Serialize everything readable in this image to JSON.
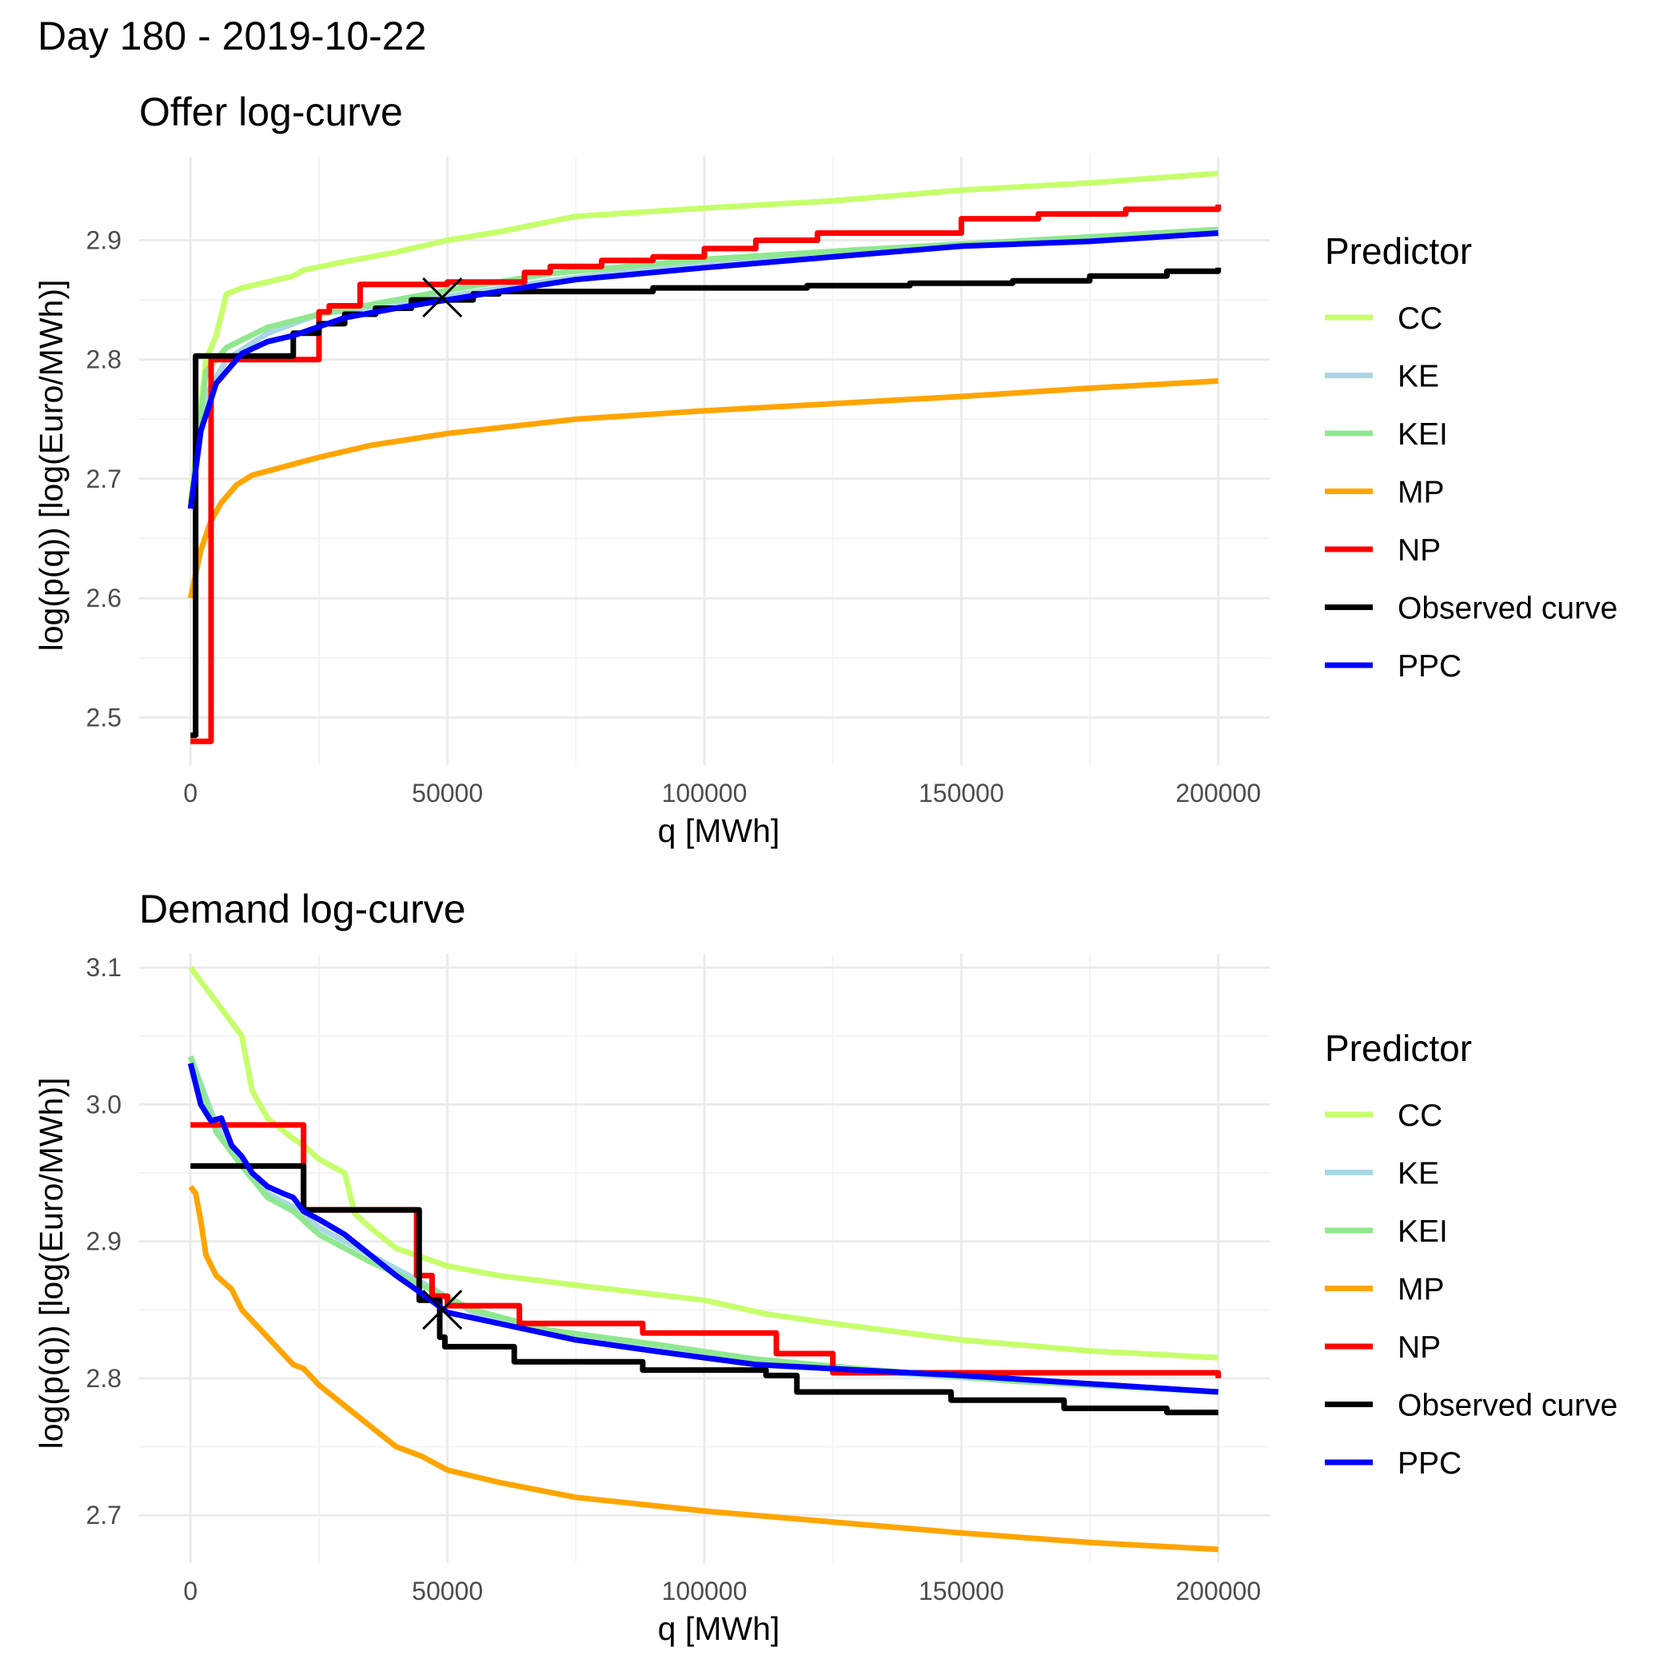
{
  "figure": {
    "title": "Day  180  -  2019-10-22"
  },
  "colors": {
    "CC": "#c6ff6b",
    "KE": "#a8d8e4",
    "KEI": "#8fe88f",
    "MP": "#ffa500",
    "NP": "#ff0000",
    "Observed curve": "#000000",
    "PPC": "#0000ff",
    "grid_major": "#ebebeb",
    "grid_minor": "#f4f4f4"
  },
  "chart_data": [
    {
      "type": "line",
      "title": "Offer log-curve",
      "xlabel": "q [MWh]",
      "ylabel": "log(p(q)) [log(Euro/MWh)]",
      "xlim": [
        -10000,
        210000
      ],
      "ylim": [
        2.46,
        2.97
      ],
      "xticks": [
        0,
        50000,
        100000,
        150000,
        200000
      ],
      "xtick_labels": [
        "0",
        "50000",
        "100000",
        "150000",
        "200000"
      ],
      "yticks": [
        2.5,
        2.6,
        2.7,
        2.8,
        2.9
      ],
      "ytick_labels": [
        "2.5",
        "2.6",
        "2.7",
        "2.8",
        "2.9"
      ],
      "grid": true,
      "legend": {
        "title": "Predictor",
        "position": "right",
        "entries": [
          "CC",
          "KE",
          "KEI",
          "MP",
          "NP",
          "Observed curve",
          "PPC"
        ]
      },
      "marker": {
        "x": 49000,
        "y": 2.852,
        "symbol": "x"
      },
      "series": [
        {
          "name": "CC",
          "step": false,
          "x": [
            0,
            3000,
            5000,
            7000,
            10000,
            15000,
            20000,
            22000,
            30000,
            40000,
            50000,
            60000,
            75000,
            100000,
            125000,
            150000,
            175000,
            200000
          ],
          "y": [
            2.68,
            2.8,
            2.82,
            2.855,
            2.86,
            2.865,
            2.87,
            2.875,
            2.882,
            2.89,
            2.9,
            2.907,
            2.92,
            2.927,
            2.933,
            2.942,
            2.948,
            2.956
          ]
        },
        {
          "name": "KE",
          "step": false,
          "x": [
            0,
            3000,
            7000,
            15000,
            25000,
            40000,
            50000,
            70000,
            100000,
            130000,
            160000,
            200000
          ],
          "y": [
            2.675,
            2.77,
            2.8,
            2.822,
            2.838,
            2.847,
            2.853,
            2.866,
            2.882,
            2.892,
            2.899,
            2.909
          ]
        },
        {
          "name": "KEI",
          "step": false,
          "x": [
            0,
            3000,
            7000,
            15000,
            25000,
            40000,
            50000,
            70000,
            100000,
            130000,
            160000,
            200000
          ],
          "y": [
            2.675,
            2.79,
            2.81,
            2.827,
            2.838,
            2.85,
            2.858,
            2.872,
            2.884,
            2.892,
            2.899,
            2.909
          ]
        },
        {
          "name": "MP",
          "step": false,
          "x": [
            0,
            2000,
            4000,
            6000,
            9000,
            12000,
            18000,
            25000,
            35000,
            50000,
            75000,
            100000,
            125000,
            150000,
            175000,
            200000
          ],
          "y": [
            2.6,
            2.64,
            2.665,
            2.68,
            2.695,
            2.703,
            2.71,
            2.718,
            2.728,
            2.738,
            2.75,
            2.757,
            2.763,
            2.769,
            2.776,
            2.782
          ]
        },
        {
          "name": "NP",
          "step": true,
          "x": [
            0,
            4000,
            25000,
            27000,
            33000,
            50000,
            65000,
            70000,
            80000,
            90000,
            100000,
            110000,
            122000,
            150000,
            165000,
            182000,
            200000
          ],
          "y": [
            2.48,
            2.8,
            2.84,
            2.845,
            2.863,
            2.865,
            2.873,
            2.878,
            2.883,
            2.886,
            2.893,
            2.9,
            2.906,
            2.918,
            2.922,
            2.926,
            2.93
          ]
        },
        {
          "name": "Observed curve",
          "step": true,
          "x": [
            0,
            1000,
            20000,
            25000,
            30000,
            36000,
            43000,
            55000,
            60000,
            70000,
            90000,
            100000,
            120000,
            140000,
            160000,
            175000,
            190000,
            200000
          ],
          "y": [
            2.485,
            2.803,
            2.822,
            2.83,
            2.838,
            2.843,
            2.85,
            2.855,
            2.857,
            2.857,
            2.86,
            2.86,
            2.862,
            2.864,
            2.866,
            2.87,
            2.874,
            2.877
          ]
        },
        {
          "name": "PPC",
          "step": false,
          "x": [
            0,
            2000,
            5000,
            10000,
            15000,
            20000,
            30000,
            40000,
            50000,
            60000,
            75000,
            100000,
            125000,
            150000,
            175000,
            200000
          ],
          "y": [
            2.675,
            2.74,
            2.78,
            2.805,
            2.815,
            2.82,
            2.835,
            2.843,
            2.85,
            2.857,
            2.867,
            2.877,
            2.886,
            2.895,
            2.899,
            2.906
          ]
        }
      ]
    },
    {
      "type": "line",
      "title": "Demand log-curve",
      "xlabel": "q [MWh]",
      "ylabel": "log(p(q)) [log(Euro/MWh)]",
      "xlim": [
        -10000,
        210000
      ],
      "ylim": [
        2.665,
        3.11
      ],
      "xticks": [
        0,
        50000,
        100000,
        150000,
        200000
      ],
      "xtick_labels": [
        "0",
        "50000",
        "100000",
        "150000",
        "200000"
      ],
      "yticks": [
        2.7,
        2.8,
        2.9,
        3.0,
        3.1
      ],
      "ytick_labels": [
        "2.7",
        "2.8",
        "2.9",
        "3.0",
        "3.1"
      ],
      "grid": true,
      "legend": {
        "title": "Predictor",
        "position": "right",
        "entries": [
          "CC",
          "KE",
          "KEI",
          "MP",
          "NP",
          "Observed curve",
          "PPC"
        ]
      },
      "marker": {
        "x": 49000,
        "y": 2.85,
        "symbol": "x"
      },
      "series": [
        {
          "name": "CC",
          "step": false,
          "x": [
            0,
            2000,
            5000,
            8000,
            10000,
            12000,
            15000,
            20000,
            22000,
            25000,
            30000,
            32000,
            35000,
            40000,
            50000,
            60000,
            75000,
            100000,
            112000,
            125000,
            150000,
            175000,
            200000
          ],
          "y": [
            3.1,
            3.09,
            3.075,
            3.06,
            3.05,
            3.01,
            2.99,
            2.975,
            2.97,
            2.96,
            2.95,
            2.92,
            2.91,
            2.895,
            2.882,
            2.875,
            2.868,
            2.857,
            2.847,
            2.84,
            2.828,
            2.82,
            2.815
          ]
        },
        {
          "name": "KE",
          "step": false,
          "x": [
            0,
            5000,
            10000,
            15000,
            20000,
            25000,
            35000,
            45000,
            55000,
            70000,
            90000,
            110000,
            130000,
            160000,
            200000
          ],
          "y": [
            3.035,
            2.985,
            2.96,
            2.935,
            2.925,
            2.91,
            2.89,
            2.87,
            2.848,
            2.832,
            2.822,
            2.81,
            2.806,
            2.798,
            2.79
          ]
        },
        {
          "name": "KEI",
          "step": false,
          "x": [
            0,
            5000,
            10000,
            15000,
            20000,
            25000,
            35000,
            45000,
            55000,
            70000,
            90000,
            110000,
            130000,
            160000,
            200000
          ],
          "y": [
            3.035,
            2.98,
            2.955,
            2.932,
            2.922,
            2.905,
            2.885,
            2.868,
            2.85,
            2.835,
            2.825,
            2.814,
            2.807,
            2.798,
            2.79
          ]
        },
        {
          "name": "MP",
          "step": false,
          "x": [
            0,
            1000,
            2000,
            3000,
            5000,
            8000,
            10000,
            15000,
            20000,
            22000,
            25000,
            30000,
            35000,
            40000,
            45000,
            50000,
            60000,
            75000,
            100000,
            125000,
            150000,
            175000,
            200000
          ],
          "y": [
            2.94,
            2.935,
            2.915,
            2.89,
            2.875,
            2.865,
            2.85,
            2.83,
            2.81,
            2.807,
            2.795,
            2.78,
            2.765,
            2.75,
            2.743,
            2.733,
            2.724,
            2.713,
            2.703,
            2.695,
            2.687,
            2.68,
            2.675
          ]
        },
        {
          "name": "NP",
          "step": true,
          "x": [
            0,
            22000,
            44000,
            47000,
            50000,
            64000,
            88000,
            114000,
            125000,
            200000
          ],
          "y": [
            2.985,
            2.923,
            2.875,
            2.86,
            2.853,
            2.84,
            2.833,
            2.818,
            2.804,
            2.8
          ]
        },
        {
          "name": "Observed curve",
          "step": true,
          "x": [
            0,
            22000,
            44500,
            48500,
            49500,
            63000,
            88000,
            112000,
            118000,
            148000,
            170000,
            190000,
            200000
          ],
          "y": [
            2.955,
            2.923,
            2.857,
            2.83,
            2.823,
            2.812,
            2.806,
            2.802,
            2.79,
            2.784,
            2.778,
            2.775,
            2.775
          ]
        },
        {
          "name": "PPC",
          "step": false,
          "x": [
            0,
            2000,
            4000,
            6000,
            8000,
            10000,
            12000,
            15000,
            18000,
            20000,
            22000,
            25000,
            30000,
            35000,
            40000,
            45000,
            50000,
            60000,
            75000,
            90000,
            110000,
            130000,
            150000,
            175000,
            200000
          ],
          "y": [
            3.03,
            3.0,
            2.988,
            2.99,
            2.97,
            2.962,
            2.95,
            2.94,
            2.935,
            2.932,
            2.922,
            2.916,
            2.905,
            2.89,
            2.875,
            2.862,
            2.848,
            2.84,
            2.828,
            2.82,
            2.81,
            2.806,
            2.802,
            2.796,
            2.79
          ]
        }
      ]
    }
  ]
}
